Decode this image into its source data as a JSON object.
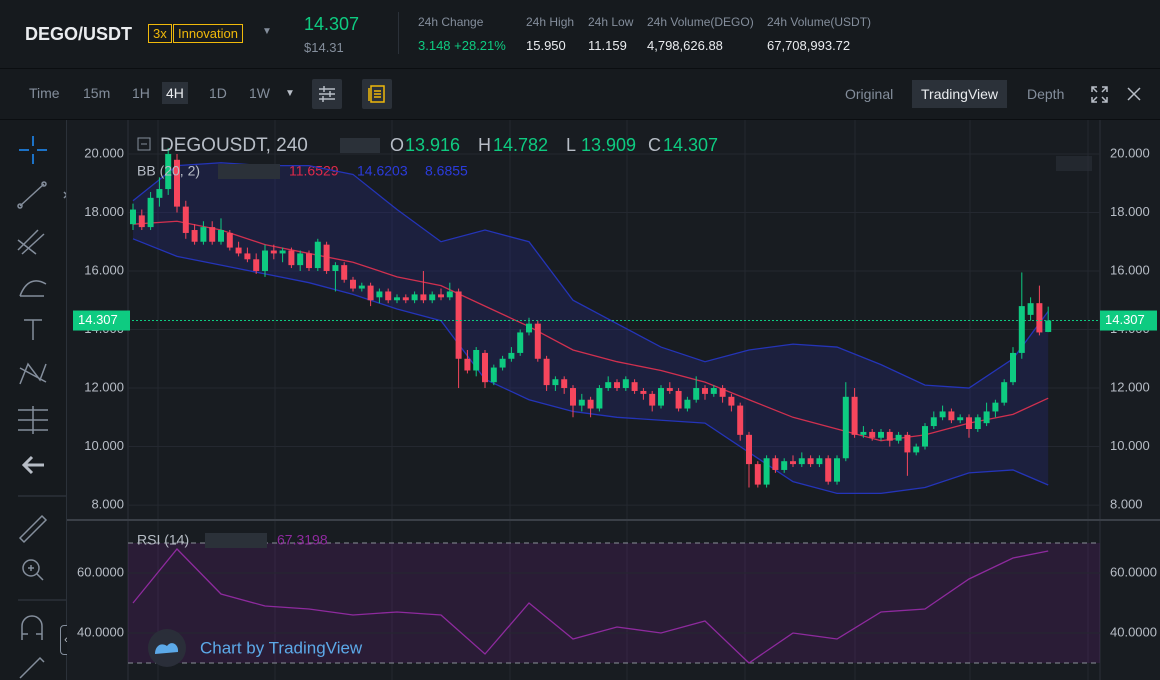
{
  "header": {
    "pair": "DEGO/USDT",
    "leverage": "3x",
    "tag": "Innovation",
    "price": "14.307",
    "price_usd": "$14.31",
    "stats": [
      {
        "label": "24h Change",
        "value": "3.148 +28.21%"
      },
      {
        "label": "24h High",
        "value": "15.950"
      },
      {
        "label": "24h Low",
        "value": "11.159"
      },
      {
        "label": "24h Volume(DEGO)",
        "value": "4,798,626.88"
      },
      {
        "label": "24h Volume(USDT)",
        "value": "67,708,993.72"
      }
    ]
  },
  "toolbar": {
    "intervals": [
      "Time",
      "15m",
      "1H",
      "4H",
      "1D",
      "1W"
    ],
    "active": 3,
    "views": [
      "Original",
      "TradingView",
      "Depth"
    ],
    "active_view": 1
  },
  "chart_data": [
    {
      "type": "candlestick",
      "symbol": "DEGOUSDT, 240",
      "ohlc_letters": [
        "O",
        "H",
        "L",
        "C"
      ],
      "ohlc_values": [
        "13.916",
        "14.782",
        "13.909",
        "14.307"
      ],
      "up_color": "#0ecb81",
      "down_color": "#f6465d",
      "last_price": 14.307,
      "ylim": [
        7.49,
        21.16
      ],
      "yticks": [
        {
          "value": 8,
          "label": "8.000"
        },
        {
          "value": 10,
          "label": "10.000"
        },
        {
          "value": 12,
          "label": "12.000"
        },
        {
          "value": 14,
          "label": "14.000"
        },
        {
          "value": 16,
          "label": "16.000"
        },
        {
          "value": 18,
          "label": "18.000"
        },
        {
          "value": 20,
          "label": "20.000"
        }
      ],
      "candles": [
        [
          17.6,
          18.3,
          17.4,
          18.1
        ],
        [
          17.9,
          18.1,
          17.4,
          17.5
        ],
        [
          17.5,
          18.7,
          17.4,
          18.5
        ],
        [
          18.5,
          19.2,
          18.2,
          18.8
        ],
        [
          18.8,
          20.2,
          18.6,
          20.0
        ],
        [
          19.8,
          20.0,
          18.0,
          18.2
        ],
        [
          18.2,
          18.4,
          17.1,
          17.3
        ],
        [
          17.4,
          17.6,
          16.9,
          17.0
        ],
        [
          17.0,
          17.7,
          16.9,
          17.5
        ],
        [
          17.5,
          17.7,
          16.9,
          17.0
        ],
        [
          17.0,
          17.8,
          16.9,
          17.4
        ],
        [
          17.3,
          17.4,
          16.7,
          16.8
        ],
        [
          16.8,
          17.0,
          16.5,
          16.6
        ],
        [
          16.6,
          16.8,
          16.3,
          16.4
        ],
        [
          16.4,
          16.6,
          15.9,
          16.0
        ],
        [
          16.0,
          16.9,
          15.8,
          16.7
        ],
        [
          16.7,
          16.9,
          16.4,
          16.6
        ],
        [
          16.6,
          16.8,
          16.3,
          16.7
        ],
        [
          16.7,
          16.8,
          16.1,
          16.2
        ],
        [
          16.2,
          16.7,
          16.0,
          16.6
        ],
        [
          16.6,
          16.7,
          16.0,
          16.1
        ],
        [
          16.1,
          17.1,
          16.0,
          17.0
        ],
        [
          16.9,
          17.0,
          15.9,
          16.0
        ],
        [
          16.0,
          16.3,
          15.3,
          16.2
        ],
        [
          16.2,
          16.3,
          15.6,
          15.7
        ],
        [
          15.7,
          15.8,
          15.3,
          15.4
        ],
        [
          15.4,
          15.6,
          15.3,
          15.5
        ],
        [
          15.5,
          15.6,
          14.8,
          15.0
        ],
        [
          15.1,
          15.4,
          14.9,
          15.3
        ],
        [
          15.3,
          15.4,
          14.9,
          15.0
        ],
        [
          15.0,
          15.2,
          14.9,
          15.1
        ],
        [
          15.1,
          15.2,
          14.9,
          15.0
        ],
        [
          15.0,
          15.3,
          14.9,
          15.2
        ],
        [
          15.2,
          16.0,
          14.9,
          15.0
        ],
        [
          15.0,
          15.3,
          14.9,
          15.2
        ],
        [
          15.2,
          15.4,
          15.0,
          15.1
        ],
        [
          15.1,
          15.6,
          15.0,
          15.3
        ],
        [
          15.3,
          15.4,
          12.0,
          13.0
        ],
        [
          13.0,
          13.3,
          12.5,
          12.6
        ],
        [
          12.6,
          13.4,
          12.4,
          13.3
        ],
        [
          13.2,
          13.3,
          12.0,
          12.2
        ],
        [
          12.2,
          12.8,
          12.1,
          12.7
        ],
        [
          12.7,
          13.1,
          12.6,
          13.0
        ],
        [
          13.0,
          13.4,
          12.9,
          13.2
        ],
        [
          13.2,
          14.0,
          13.1,
          13.9
        ],
        [
          13.9,
          14.4,
          13.8,
          14.2
        ],
        [
          14.2,
          14.3,
          12.9,
          13.0
        ],
        [
          13.0,
          13.1,
          11.9,
          12.1
        ],
        [
          12.1,
          12.4,
          11.9,
          12.3
        ],
        [
          12.3,
          12.4,
          11.8,
          12.0
        ],
        [
          12.0,
          12.1,
          11.0,
          11.4
        ],
        [
          11.4,
          11.8,
          11.2,
          11.6
        ],
        [
          11.6,
          11.7,
          11.0,
          11.3
        ],
        [
          11.3,
          12.1,
          11.2,
          12.0
        ],
        [
          12.0,
          12.4,
          11.9,
          12.2
        ],
        [
          12.2,
          12.3,
          11.9,
          12.0
        ],
        [
          12.0,
          12.4,
          11.9,
          12.3
        ],
        [
          12.2,
          12.3,
          11.8,
          11.9
        ],
        [
          11.9,
          12.0,
          11.6,
          11.8
        ],
        [
          11.8,
          11.9,
          11.2,
          11.4
        ],
        [
          11.4,
          12.1,
          11.3,
          12.0
        ],
        [
          12.0,
          12.2,
          11.8,
          11.9
        ],
        [
          11.9,
          12.0,
          11.2,
          11.3
        ],
        [
          11.3,
          11.7,
          11.2,
          11.6
        ],
        [
          11.6,
          12.4,
          11.5,
          12.0
        ],
        [
          12.0,
          12.1,
          11.6,
          11.8
        ],
        [
          11.8,
          12.1,
          11.7,
          12.0
        ],
        [
          12.0,
          12.1,
          11.5,
          11.7
        ],
        [
          11.7,
          11.8,
          11.2,
          11.4
        ],
        [
          11.4,
          11.5,
          10.2,
          10.4
        ],
        [
          10.4,
          10.5,
          8.6,
          9.4
        ],
        [
          9.4,
          9.5,
          8.6,
          8.7
        ],
        [
          8.7,
          9.7,
          8.6,
          9.6
        ],
        [
          9.6,
          9.7,
          9.1,
          9.2
        ],
        [
          9.2,
          9.6,
          9.1,
          9.5
        ],
        [
          9.5,
          9.7,
          9.3,
          9.4
        ],
        [
          9.4,
          9.8,
          9.3,
          9.6
        ],
        [
          9.6,
          9.7,
          9.3,
          9.4
        ],
        [
          9.4,
          9.7,
          9.3,
          9.6
        ],
        [
          9.6,
          9.7,
          8.7,
          8.8
        ],
        [
          8.8,
          9.7,
          8.7,
          9.6
        ],
        [
          9.6,
          12.2,
          9.5,
          11.7
        ],
        [
          11.7,
          12.0,
          10.3,
          10.4
        ],
        [
          10.4,
          10.7,
          10.3,
          10.5
        ],
        [
          10.5,
          10.6,
          10.2,
          10.3
        ],
        [
          10.3,
          10.6,
          10.2,
          10.5
        ],
        [
          10.5,
          10.6,
          10.0,
          10.2
        ],
        [
          10.2,
          10.5,
          10.1,
          10.4
        ],
        [
          10.4,
          10.5,
          9.0,
          9.8
        ],
        [
          9.8,
          10.1,
          9.7,
          10.0
        ],
        [
          10.0,
          10.8,
          9.9,
          10.7
        ],
        [
          10.7,
          11.2,
          10.6,
          11.0
        ],
        [
          11.0,
          11.4,
          10.9,
          11.2
        ],
        [
          11.2,
          11.3,
          10.8,
          10.9
        ],
        [
          10.9,
          11.1,
          10.8,
          11.0
        ],
        [
          11.0,
          11.1,
          10.3,
          10.6
        ],
        [
          10.6,
          11.1,
          10.5,
          11.0
        ],
        [
          10.8,
          11.5,
          10.7,
          11.2
        ],
        [
          11.2,
          11.6,
          11.0,
          11.5
        ],
        [
          11.5,
          12.3,
          11.4,
          12.2
        ],
        [
          12.2,
          13.4,
          12.1,
          13.2
        ],
        [
          13.2,
          15.95,
          13.0,
          14.8
        ],
        [
          14.5,
          15.1,
          14.3,
          14.9
        ],
        [
          14.9,
          15.5,
          13.8,
          13.9
        ],
        [
          13.916,
          14.782,
          13.909,
          14.307
        ]
      ],
      "indicator": {
        "name": "BB (20, 2)",
        "x": [
          0,
          5,
          10,
          15,
          20,
          25,
          30,
          35,
          40,
          45,
          50,
          55,
          60,
          65,
          70,
          75,
          80,
          85,
          90,
          95,
          100,
          104
        ],
        "series": [
          {
            "color": "#d0304f",
            "values": [
              17.6,
              17.7,
              17.4,
              16.9,
              16.6,
              16.3,
              15.8,
              15.5,
              14.8,
              14.1,
              13.3,
              12.9,
              12.6,
              12.2,
              11.6,
              11.0,
              10.6,
              10.2,
              10.4,
              10.8,
              11.1,
              11.6529
            ],
            "value_label": "11.6529"
          },
          {
            "color": "#2434b8",
            "values": [
              18.4,
              19.6,
              19.7,
              19.6,
              19.6,
              19.3,
              18.1,
              17.0,
              17.4,
              17.0,
              15.0,
              14.2,
              13.4,
              12.9,
              13.3,
              13.5,
              13.4,
              12.8,
              12.1,
              12.0,
              13.0,
              14.6203
            ],
            "value_label": "14.6203"
          },
          {
            "color": "#2434b8",
            "values": [
              17.1,
              16.5,
              16.2,
              15.9,
              15.6,
              15.2,
              14.7,
              14.3,
              12.3,
              11.6,
              11.2,
              11.0,
              10.9,
              10.8,
              9.8,
              8.8,
              8.4,
              8.4,
              8.6,
              9.1,
              9.2,
              8.6855
            ],
            "value_label": "8.6855"
          }
        ]
      }
    },
    {
      "type": "line",
      "name": "RSI (14)",
      "color": "#8e2a9e",
      "x": [
        0,
        5,
        10,
        15,
        20,
        25,
        30,
        35,
        40,
        45,
        50,
        55,
        60,
        65,
        70,
        75,
        80,
        85,
        90,
        95,
        100,
        104
      ],
      "values": [
        50,
        68,
        53,
        49,
        48,
        46,
        47,
        46,
        33,
        50,
        38,
        42,
        40,
        44,
        30,
        40,
        38,
        47,
        48,
        58,
        65,
        67.3198
      ],
      "value_label": "67.3198",
      "bands": [
        30,
        70
      ],
      "ylim": [
        24.33,
        77
      ],
      "yticks": [
        {
          "value": 40,
          "label": "40.0000"
        },
        {
          "value": 60,
          "label": "60.0000"
        }
      ]
    }
  ],
  "watermark": "Chart by TradingView"
}
